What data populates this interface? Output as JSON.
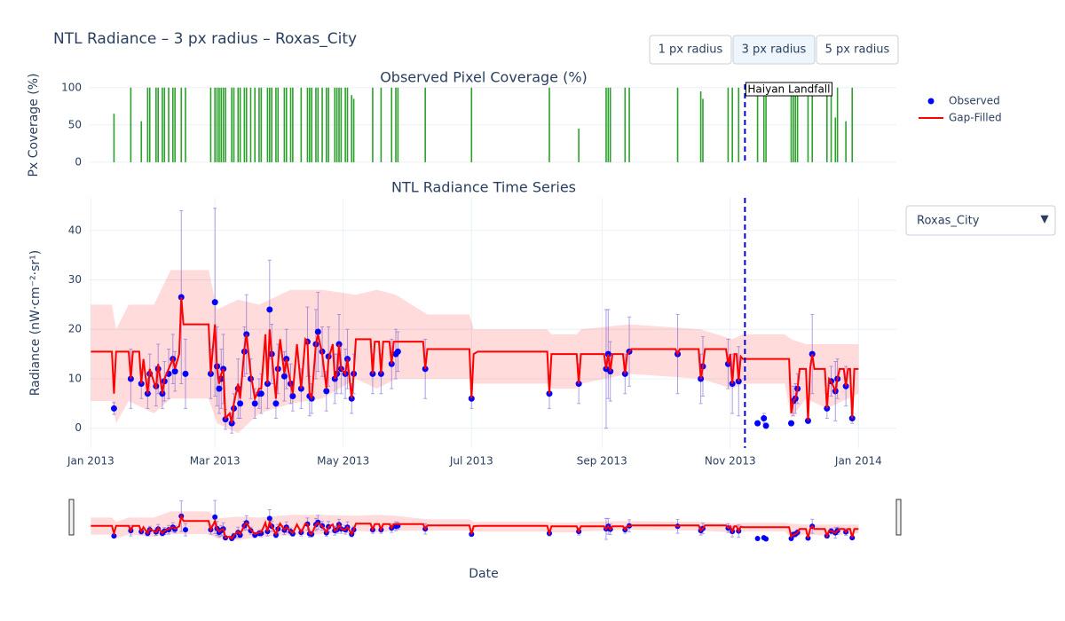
{
  "title": "NTL Radiance – 3 px radius – Roxas_City",
  "buttons": [
    "1 px radius",
    "3 px radius",
    "5 px radius"
  ],
  "active_button": 1,
  "dropdown": "Roxas_City",
  "x_label": "Date",
  "chart_data": [
    {
      "type": "bar",
      "title": "Observed Pixel Coverage (%)",
      "y_label": "Px Coverage (%)",
      "color": "#2ca02c",
      "xlim": [
        -1,
        383
      ],
      "ylim": [
        -2.5,
        104.5
      ],
      "yticks": [
        0,
        50,
        100
      ],
      "grid": true,
      "x": [
        11,
        19,
        24,
        27,
        28,
        31,
        32,
        34,
        35,
        37,
        39,
        40,
        43,
        45,
        57,
        59,
        60,
        61,
        62,
        63,
        64,
        67,
        68,
        70,
        71,
        73,
        74,
        76,
        78,
        80,
        81,
        84,
        85,
        86,
        88,
        89,
        92,
        93,
        95,
        96,
        100,
        103,
        104,
        105,
        107,
        108,
        110,
        112,
        113,
        116,
        117,
        118,
        119,
        121,
        122,
        124,
        125,
        134,
        138,
        143,
        145,
        146,
        159,
        181,
        218,
        232,
        245,
        246,
        247,
        254,
        256,
        279,
        290,
        291,
        303,
        305,
        308,
        317,
        320,
        321,
        333,
        334,
        335,
        336,
        341,
        343,
        350,
        352,
        354,
        355,
        359,
        362
      ],
      "values": [
        65,
        100,
        55,
        100,
        100,
        100,
        100,
        100,
        100,
        100,
        100,
        100,
        100,
        100,
        100,
        100,
        100,
        100,
        100,
        100,
        100,
        100,
        100,
        100,
        100,
        100,
        100,
        100,
        100,
        100,
        100,
        100,
        100,
        100,
        100,
        100,
        100,
        100,
        100,
        100,
        100,
        100,
        100,
        100,
        100,
        100,
        100,
        100,
        100,
        100,
        100,
        100,
        100,
        100,
        100,
        90,
        85,
        100,
        100,
        100,
        100,
        100,
        100,
        100,
        100,
        45,
        100,
        100,
        100,
        100,
        100,
        100,
        95,
        85,
        100,
        100,
        100,
        100,
        100,
        100,
        100,
        100,
        100,
        100,
        100,
        100,
        100,
        100,
        60,
        100,
        55,
        100
      ]
    },
    {
      "type": "line",
      "title": "NTL Radiance Time Series",
      "y_label": "Radiance (nW·cm⁻²·sr¹)",
      "xlim": [
        -1,
        383
      ],
      "ylim": [
        -4,
        46.6
      ],
      "grid": true,
      "legend": "top-right",
      "rangeslider": true,
      "xticks": [
        {
          "value": 0,
          "label": "Jan 2013"
        },
        {
          "value": 59,
          "label": "Mar 2013"
        },
        {
          "value": 120,
          "label": "May 2013"
        },
        {
          "value": 181,
          "label": "Jul 2013"
        },
        {
          "value": 243,
          "label": "Sep 2013"
        },
        {
          "value": 304,
          "label": "Nov 2013"
        },
        {
          "value": 365,
          "label": "Jan 2014"
        }
      ],
      "yticks": [
        0,
        10,
        20,
        30,
        40
      ],
      "band": {
        "color": "rgba(255,0,0,0.14)",
        "x": [
          0,
          10,
          12,
          18,
          30,
          38,
          56,
          60,
          70,
          80,
          95,
          110,
          126,
          136,
          145,
          160,
          180,
          182,
          217,
          219,
          231,
          233,
          256,
          290,
          305,
          310,
          330,
          333,
          340,
          350,
          360,
          365
        ],
        "upper": [
          25,
          25,
          20,
          25,
          25,
          32,
          32,
          24,
          26,
          25,
          28,
          28,
          27,
          28,
          27,
          23,
          23,
          20,
          20,
          19,
          19,
          20,
          21,
          20,
          18,
          19,
          19,
          18,
          17,
          17,
          17,
          17
        ],
        "lower": [
          5.5,
          5.5,
          1,
          5.5,
          3,
          6,
          6,
          1,
          -1,
          3,
          5,
          6,
          10,
          8,
          10,
          10,
          10,
          9,
          9,
          8,
          8,
          9,
          11,
          10,
          8,
          9,
          9,
          2,
          6,
          4,
          6,
          7
        ]
      },
      "series": [
        {
          "name": "Observed",
          "kind": "scatter",
          "color": "#0000ff",
          "error_color": "rgba(110,80,210,0.55)",
          "x": [
            11,
            19,
            24,
            27,
            28,
            31,
            32,
            34,
            35,
            37,
            39,
            40,
            43,
            45,
            57,
            59,
            60,
            61,
            62,
            63,
            64,
            67,
            68,
            70,
            71,
            73,
            74,
            76,
            78,
            80,
            81,
            84,
            85,
            86,
            88,
            89,
            92,
            93,
            95,
            96,
            100,
            103,
            104,
            105,
            107,
            108,
            110,
            112,
            113,
            116,
            117,
            118,
            119,
            121,
            122,
            124,
            125,
            134,
            138,
            143,
            145,
            146,
            159,
            181,
            218,
            232,
            245,
            246,
            247,
            254,
            256,
            279,
            290,
            291,
            303,
            305,
            308,
            317,
            320,
            321,
            333,
            334,
            335,
            336,
            341,
            343,
            350,
            352,
            354,
            355,
            359,
            362
          ],
          "values": [
            4,
            10,
            9,
            7,
            11,
            8.5,
            12,
            7,
            9.5,
            11,
            14,
            11.5,
            26.5,
            11,
            11,
            25.5,
            12.5,
            8,
            10,
            12,
            1.8,
            1,
            4,
            8,
            5,
            15.5,
            19,
            10,
            5,
            7,
            7,
            9,
            24,
            15,
            5,
            12,
            10.5,
            14,
            9,
            6.5,
            8,
            17.5,
            6.5,
            6,
            17,
            19.5,
            15.5,
            7.5,
            14.5,
            10,
            11,
            17,
            12,
            11,
            14,
            6,
            11,
            11,
            11,
            13,
            15,
            15.5,
            12,
            6,
            7,
            9,
            12,
            15,
            11.5,
            11,
            15.5,
            15,
            10,
            12.5,
            13,
            9,
            9.5,
            1,
            2,
            0.5,
            1,
            5.5,
            6,
            8,
            1.5,
            15,
            4,
            9.5,
            7.5,
            10,
            8.5,
            2
          ],
          "errors": [
            1.2,
            6,
            3,
            3,
            4,
            4,
            5,
            3,
            4,
            5,
            5,
            4,
            17.5,
            7,
            5,
            19,
            8,
            5,
            6,
            7,
            2,
            2,
            3,
            6,
            3,
            5,
            8,
            4,
            3,
            3,
            4,
            5,
            10,
            6,
            3,
            5,
            5,
            6,
            4,
            3,
            4,
            7,
            4,
            3,
            7,
            8,
            5,
            4,
            6,
            5,
            4,
            6,
            5,
            5,
            6,
            3,
            4,
            4,
            4,
            5,
            5,
            4,
            6,
            2,
            3,
            4,
            12,
            9,
            6,
            4,
            7,
            8,
            5,
            6,
            5,
            6,
            7,
            0.5,
            1,
            0.5,
            0.5,
            3,
            3,
            3,
            0.5,
            8,
            2,
            3,
            6,
            4,
            4,
            1
          ]
        },
        {
          "name": "Gap-Filled",
          "kind": "line",
          "color": "#ff0000",
          "x": [
            0,
            10,
            11,
            12,
            18,
            19,
            20,
            23,
            24,
            25,
            27,
            28,
            31,
            32,
            34,
            35,
            37,
            39,
            40,
            42,
            43,
            44,
            56,
            57,
            59,
            60,
            61,
            62,
            63,
            64,
            66,
            67,
            68,
            70,
            71,
            73,
            74,
            76,
            78,
            80,
            81,
            83,
            84,
            85,
            86,
            88,
            89,
            90,
            92,
            93,
            95,
            96,
            98,
            100,
            102,
            103,
            104,
            105,
            107,
            108,
            110,
            112,
            113,
            115,
            116,
            117,
            118,
            119,
            121,
            122,
            124,
            125,
            126,
            133,
            134,
            135,
            137,
            138,
            139,
            142,
            143,
            144,
            158,
            159,
            160,
            180,
            181,
            182,
            184,
            217,
            218,
            219,
            231,
            232,
            233,
            244,
            245,
            246,
            247,
            248,
            253,
            254,
            255,
            257,
            278,
            279,
            280,
            289,
            290,
            291,
            292,
            302,
            303,
            304,
            305,
            306,
            307,
            308,
            309,
            310,
            332,
            333,
            334,
            335,
            336,
            337,
            340,
            341,
            342,
            343,
            344,
            349,
            350,
            351,
            352,
            354,
            355,
            356,
            358,
            359,
            360,
            361,
            362,
            363,
            365
          ],
          "values": [
            15.5,
            15.5,
            7,
            15.5,
            15.5,
            10,
            15.5,
            15.5,
            9,
            14,
            7,
            12,
            8,
            13,
            7,
            10,
            12,
            14,
            12,
            15,
            26.5,
            21,
            21,
            11,
            21,
            12,
            9,
            11,
            12,
            2,
            3,
            1,
            5,
            9,
            6,
            16,
            19,
            11,
            6,
            8,
            8,
            19,
            9,
            20,
            15,
            6,
            13,
            18,
            11,
            14,
            9,
            7,
            17,
            8,
            18,
            17.5,
            7,
            6,
            17,
            19,
            15,
            8,
            14,
            17,
            10,
            11,
            17,
            12,
            11,
            14,
            6,
            11,
            18,
            18,
            11,
            17.5,
            17.5,
            11,
            17.5,
            17.5,
            13,
            17.5,
            17.5,
            12,
            16,
            16,
            6,
            15,
            15.5,
            15.5,
            7,
            15,
            15,
            9,
            15,
            15,
            12,
            15,
            11.5,
            15,
            15,
            11,
            15,
            16,
            16,
            15,
            16,
            16,
            10,
            12.5,
            16,
            16,
            13,
            15,
            9,
            15,
            15,
            9.5,
            14.5,
            14,
            14,
            3,
            5.5,
            6,
            8,
            12,
            12,
            1.5,
            12,
            15,
            12,
            12,
            4,
            10,
            9.5,
            7.5,
            10,
            12,
            12,
            8.5,
            12,
            12,
            2,
            12,
            12
          ]
        }
      ],
      "annotations": [
        {
          "x": 311,
          "text": "Haiyan Landfall",
          "color": "#0000cd"
        }
      ]
    }
  ]
}
